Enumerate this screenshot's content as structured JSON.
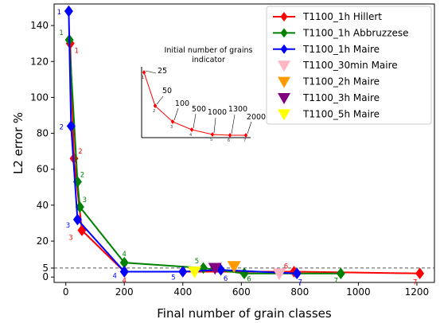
{
  "chart_data": {
    "type": "line",
    "xlabel": "Final number of grain classes",
    "ylabel": "L2 error %",
    "xlim": [
      -40,
      1260
    ],
    "ylim": [
      -3,
      152
    ],
    "xticks": [
      0,
      200,
      400,
      600,
      800,
      1000,
      1200
    ],
    "yticks": [
      0,
      5,
      20,
      40,
      60,
      80,
      100,
      120,
      140
    ],
    "reference_line": {
      "y": 5,
      "style": "dashed"
    },
    "grid": false,
    "legend_position": "top-right",
    "series": [
      {
        "name": "T1100_1h Hillert",
        "color": "#ff0000",
        "marker": "diamond",
        "x": [
          15,
          28,
          55,
          200,
          400,
          780,
          1210
        ],
        "y": [
          130,
          66,
          26,
          3,
          3,
          3,
          2
        ],
        "point_labels": [
          "1",
          "2",
          "3",
          "4",
          "5",
          "6",
          "7"
        ]
      },
      {
        "name": "T1100_1h Abbruzzese",
        "color": "#008000",
        "marker": "diamond",
        "x": [
          12,
          40,
          48,
          200,
          470,
          610,
          940
        ],
        "y": [
          132,
          53,
          39,
          8,
          5,
          2,
          2
        ],
        "point_labels": [
          "1",
          "2",
          "3",
          "4",
          "5",
          "6",
          "7"
        ]
      },
      {
        "name": "T1100_1h Maire",
        "color": "#0000ff",
        "marker": "diamond",
        "x": [
          10,
          18,
          40,
          200,
          400,
          530,
          790
        ],
        "y": [
          148,
          84,
          32,
          3,
          3,
          4,
          2
        ],
        "point_labels": [
          "1",
          "2",
          "3",
          "4",
          "5",
          "6",
          "7"
        ]
      },
      {
        "name": "T1100_30min Maire",
        "color": "#ffb6c1",
        "marker": "triangle-down",
        "x": [
          730
        ],
        "y": [
          2
        ]
      },
      {
        "name": "T1100_2h Maire",
        "color": "#ff9900",
        "marker": "triangle-down",
        "x": [
          575
        ],
        "y": [
          6
        ]
      },
      {
        "name": "T1100_3h Maire",
        "color": "#800080",
        "marker": "triangle-down",
        "x": [
          510
        ],
        "y": [
          5
        ]
      },
      {
        "name": "T1100_5h Maire",
        "color": "#ffff00",
        "marker": "triangle-down",
        "x": [
          440
        ],
        "y": [
          3
        ]
      }
    ]
  },
  "inset": {
    "title_line1": "Initial number of grains",
    "title_line2": "indicator",
    "labels": [
      "25",
      "50",
      "100",
      "500",
      "1000",
      "1300",
      "2000"
    ],
    "index_labels": [
      "1",
      "2",
      "3",
      "4",
      "5",
      "6",
      "7"
    ],
    "curve_color": "#ff0000"
  }
}
